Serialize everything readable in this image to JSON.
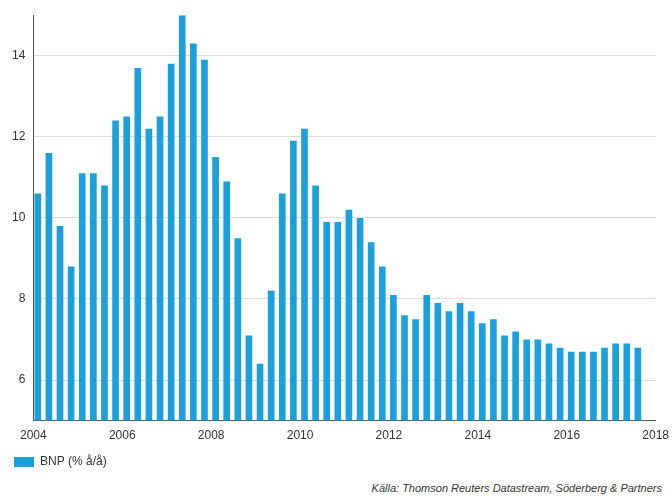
{
  "chart_data": {
    "type": "bar",
    "source": "Källa: Thomson Reuters Datastream, Söderberg & Partners",
    "x": [
      2004.1,
      2004.35,
      2004.6,
      2004.85,
      2005.1,
      2005.35,
      2005.6,
      2005.85,
      2006.1,
      2006.35,
      2006.6,
      2006.85,
      2007.1,
      2007.35,
      2007.6,
      2007.85,
      2008.1,
      2008.35,
      2008.6,
      2008.85,
      2009.1,
      2009.35,
      2009.6,
      2009.85,
      2010.1,
      2010.35,
      2010.6,
      2010.85,
      2011.1,
      2011.35,
      2011.6,
      2011.85,
      2012.1,
      2012.35,
      2012.6,
      2012.85,
      2013.1,
      2013.35,
      2013.6,
      2013.85,
      2014.1,
      2014.35,
      2014.6,
      2014.85,
      2015.1,
      2015.35,
      2015.6,
      2015.85,
      2016.1,
      2016.35,
      2016.6,
      2016.85,
      2017.1,
      2017.35,
      2017.6
    ],
    "series": [
      {
        "name": "BNP (% å/å)",
        "color": "#1ba0dc",
        "values": [
          10.6,
          11.6,
          9.8,
          8.8,
          11.1,
          11.1,
          10.8,
          12.4,
          12.5,
          13.7,
          12.2,
          12.5,
          13.8,
          15.0,
          14.3,
          13.9,
          11.5,
          10.9,
          9.5,
          7.1,
          6.4,
          8.2,
          10.6,
          11.9,
          12.2,
          10.8,
          9.9,
          9.9,
          10.2,
          10.0,
          9.4,
          8.8,
          8.1,
          7.6,
          7.5,
          8.1,
          7.9,
          7.7,
          7.9,
          7.7,
          7.4,
          7.5,
          7.1,
          7.2,
          7.0,
          7.0,
          6.9,
          6.8,
          6.7,
          6.7,
          6.7,
          6.8,
          6.9,
          6.9,
          6.8
        ]
      }
    ],
    "xlim": [
      2004,
      2018
    ],
    "xticks": [
      2004,
      2006,
      2008,
      2010,
      2012,
      2014,
      2016,
      2018
    ],
    "ylim": [
      5,
      15
    ],
    "yticks": [
      6,
      8,
      10,
      12,
      14
    ],
    "grid": true,
    "legend": "bottom"
  }
}
